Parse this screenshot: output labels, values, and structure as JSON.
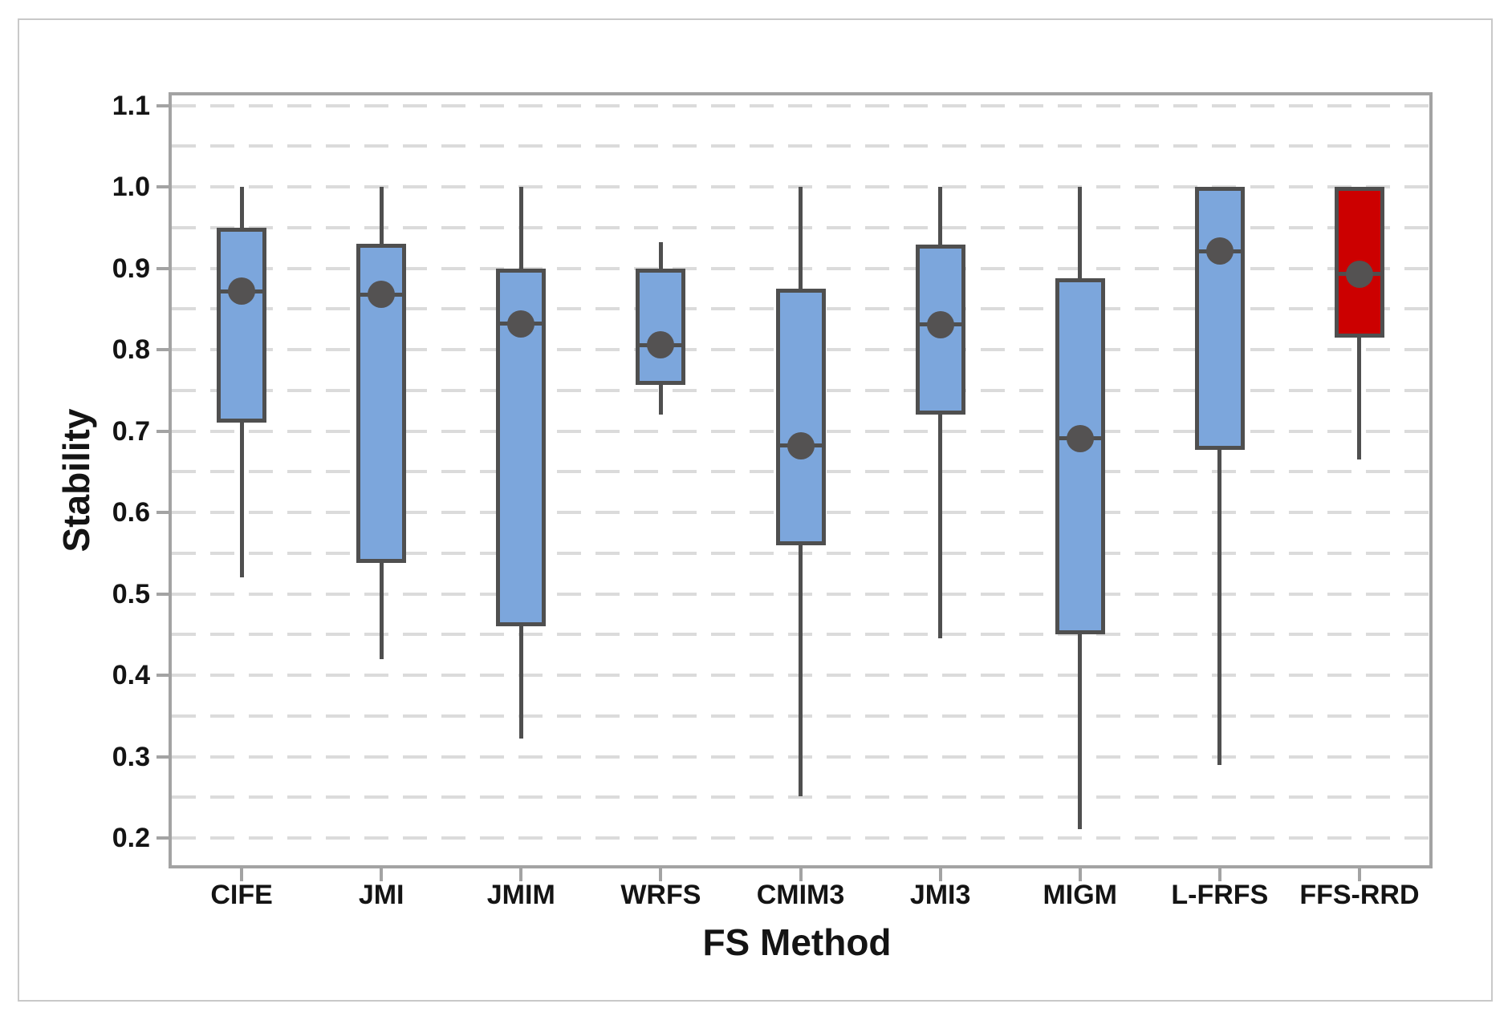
{
  "colors": {
    "box_fill": "#7ca6dc",
    "highlight_fill": "#cc0000",
    "stroke": "#4f4f4f",
    "gridline": "#dbdbdb",
    "frame": "#a3a3a3",
    "text": "#141414",
    "figure_border": "#c9c9c9"
  },
  "y_axis": {
    "title": "Stability",
    "tick_labels": [
      "1.1",
      "1.0",
      "0.9",
      "0.8",
      "0.7",
      "0.6",
      "0.5",
      "0.4",
      "0.3",
      "0.2"
    ],
    "gridline_step": 0.05,
    "gridline_min": 0.2,
    "gridline_max": 1.1
  },
  "x_axis": {
    "title": "FS Method"
  },
  "chart_data": {
    "type": "box",
    "title": "",
    "xlabel": "FS Method",
    "ylabel": "Stability",
    "ylim": [
      0.1665,
      1.1125
    ],
    "grid": "dashed horizontal every 0.05",
    "legend_position": "none",
    "categories": [
      "CIFE",
      "JMI",
      "JMIM",
      "WRFS",
      "CMIM3",
      "JMI3",
      "MIGM",
      "L-FRFS",
      "FFS-RRD"
    ],
    "series": [
      {
        "name": "CIFE",
        "min": 0.52,
        "q1": 0.71,
        "median": 0.872,
        "q3": 0.95,
        "max": 1.0,
        "mean": 0.872,
        "fill": "box_fill"
      },
      {
        "name": "JMI",
        "min": 0.42,
        "q1": 0.538,
        "median": 0.868,
        "q3": 0.93,
        "max": 1.0,
        "mean": 0.868,
        "fill": "box_fill"
      },
      {
        "name": "JMIM",
        "min": 0.322,
        "q1": 0.46,
        "median": 0.832,
        "q3": 0.9,
        "max": 1.0,
        "mean": 0.832,
        "fill": "box_fill"
      },
      {
        "name": "WRFS",
        "min": 0.72,
        "q1": 0.757,
        "median": 0.806,
        "q3": 0.9,
        "max": 0.932,
        "mean": 0.806,
        "fill": "box_fill"
      },
      {
        "name": "CMIM3",
        "min": 0.251,
        "q1": 0.56,
        "median": 0.682,
        "q3": 0.875,
        "max": 1.0,
        "mean": 0.682,
        "fill": "box_fill"
      },
      {
        "name": "JMI3",
        "min": 0.445,
        "q1": 0.72,
        "median": 0.831,
        "q3": 0.929,
        "max": 1.0,
        "mean": 0.831,
        "fill": "box_fill"
      },
      {
        "name": "MIGM",
        "min": 0.211,
        "q1": 0.45,
        "median": 0.691,
        "q3": 0.888,
        "max": 1.0,
        "mean": 0.691,
        "fill": "box_fill"
      },
      {
        "name": "L-FRFS",
        "min": 0.29,
        "q1": 0.677,
        "median": 0.921,
        "q3": 1.0,
        "max": 1.0,
        "mean": 0.921,
        "fill": "box_fill"
      },
      {
        "name": "FFS-RRD",
        "min": 0.665,
        "q1": 0.815,
        "median": 0.893,
        "q3": 1.0,
        "max": 1.0,
        "mean": 0.893,
        "fill": "highlight_fill"
      }
    ]
  }
}
